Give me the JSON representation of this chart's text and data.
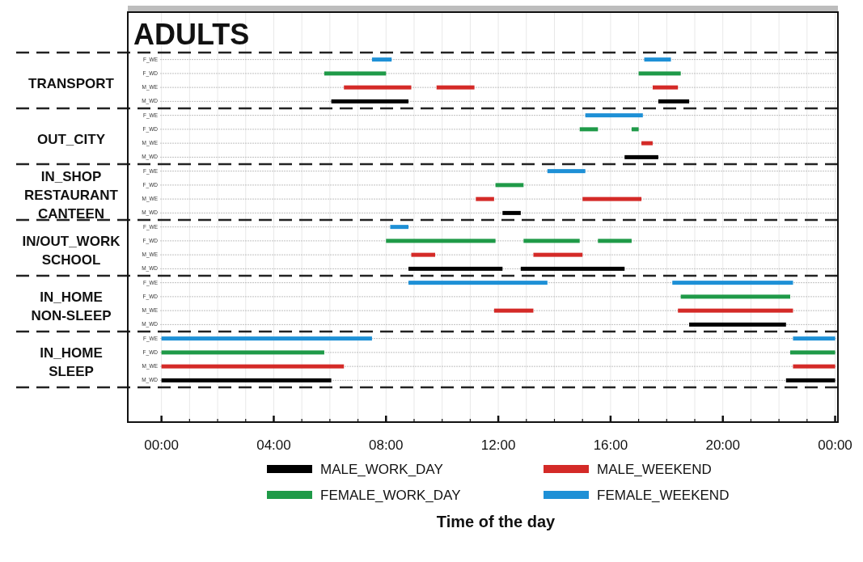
{
  "chart_data": {
    "type": "bar",
    "orientation": "horizontal",
    "title": "ADULTS",
    "xlabel": "Time of the day",
    "categories": [
      "F_WE",
      "F_WD",
      "M_WE",
      "M_WD",
      "F_WE",
      "F_WD",
      "M_WE",
      "M_WD",
      "F_WE",
      "F_WD",
      "M_WE",
      "M_WD",
      "F_WE",
      "F_WD",
      "M_WE",
      "M_WD",
      "F_WE",
      "F_WD",
      "M_WE",
      "M_WD",
      "F_WE",
      "F_WD",
      "M_WE",
      "M_WD"
    ],
    "annotations": [
      "TRANSPORT",
      "OUT_CITY",
      "IN_SHOP\nRESTAURANT\nCANTEEN",
      "IN/OUT_WORK\nSCHOOL",
      "IN_HOME\nNON-SLEEP",
      "IN_HOME\nSLEEP"
    ],
    "series": [
      {
        "name": "MALE_WORK_DAY",
        "color": "#000000",
        "values": [
          null,
          null,
          null,
          2.75,
          null,
          null,
          null,
          1.2,
          null,
          null,
          null,
          0.65,
          null,
          null,
          null,
          3.35,
          null,
          null,
          null,
          3.45,
          null,
          null,
          null,
          6.05
        ],
        "base": [
          null,
          null,
          null,
          6.05,
          null,
          null,
          null,
          16.5,
          null,
          null,
          null,
          12.15,
          null,
          null,
          null,
          8.8,
          null,
          null,
          null,
          18.8,
          null,
          null,
          null,
          0
        ]
      },
      {
        "name": "MALE_WEEKEND",
        "color": "#d42a27",
        "values": [
          null,
          null,
          2.4,
          null,
          null,
          null,
          0.4,
          null,
          null,
          null,
          0.65,
          null,
          null,
          null,
          0.85,
          null,
          null,
          null,
          1.4,
          null,
          null,
          null,
          6.5,
          null
        ],
        "base": [
          null,
          null,
          6.5,
          null,
          null,
          null,
          17.1,
          null,
          null,
          null,
          11.2,
          null,
          null,
          null,
          8.9,
          null,
          null,
          null,
          11.85,
          null,
          null,
          null,
          0,
          null
        ]
      },
      {
        "name": "FEMALE_WORK_DAY",
        "color": "#1f9a48",
        "values": [
          null,
          2.2,
          null,
          null,
          null,
          0.65,
          null,
          null,
          null,
          1.0,
          null,
          null,
          null,
          3.9,
          null,
          null,
          null,
          3.9,
          null,
          null,
          null,
          5.8,
          null,
          null
        ],
        "base": [
          null,
          5.8,
          null,
          null,
          null,
          14.9,
          null,
          null,
          null,
          11.9,
          null,
          null,
          null,
          8.0,
          null,
          null,
          null,
          18.5,
          null,
          null,
          null,
          0,
          null,
          null
        ]
      },
      {
        "name": "FEMALE_WEEKEND",
        "color": "#1e90d6",
        "values": [
          0.7,
          null,
          null,
          null,
          2.05,
          null,
          null,
          null,
          1.35,
          null,
          null,
          null,
          0.65,
          null,
          null,
          null,
          4.95,
          null,
          null,
          null,
          7.5,
          null,
          null,
          null
        ],
        "base": [
          7.5,
          null,
          null,
          null,
          15.1,
          null,
          null,
          null,
          13.75,
          null,
          null,
          null,
          8.15,
          null,
          null,
          null,
          8.8,
          null,
          null,
          null,
          0,
          null,
          null,
          null
        ]
      },
      {
        "color": "#000000",
        "values": [
          null,
          null,
          null,
          1.1,
          null,
          null,
          null,
          null,
          null,
          null,
          null,
          null,
          null,
          null,
          null,
          3.7,
          null,
          null,
          null,
          null,
          null,
          null,
          null,
          1.75
        ],
        "base": [
          null,
          null,
          null,
          17.7,
          null,
          null,
          null,
          null,
          null,
          null,
          null,
          null,
          null,
          null,
          null,
          12.8,
          null,
          null,
          null,
          null,
          null,
          null,
          null,
          22.25
        ]
      },
      {
        "color": "#d42a27",
        "values": [
          null,
          null,
          1.35,
          null,
          null,
          null,
          null,
          null,
          null,
          null,
          2.1,
          null,
          null,
          null,
          1.75,
          null,
          null,
          null,
          4.1,
          null,
          null,
          null,
          1.5,
          null
        ],
        "base": [
          null,
          null,
          9.8,
          null,
          null,
          null,
          null,
          null,
          null,
          null,
          15.0,
          null,
          null,
          null,
          13.25,
          null,
          null,
          null,
          18.4,
          null,
          null,
          null,
          22.5,
          null
        ]
      },
      {
        "color": "#d42a27",
        "values": [
          null,
          null,
          0.9,
          null,
          null,
          null,
          null,
          null,
          null,
          null,
          null,
          null,
          null,
          null,
          null,
          null,
          null,
          null,
          null,
          null,
          null,
          null,
          null,
          null
        ],
        "base": [
          null,
          null,
          17.5,
          null,
          null,
          null,
          null,
          null,
          null,
          null,
          null,
          null,
          null,
          null,
          null,
          null,
          null,
          null,
          null,
          null,
          null,
          null,
          null,
          null
        ]
      },
      {
        "color": "#1f9a48",
        "values": [
          null,
          1.5,
          null,
          null,
          null,
          0.25,
          null,
          null,
          null,
          null,
          null,
          null,
          null,
          2.0,
          null,
          null,
          null,
          null,
          null,
          null,
          null,
          1.6,
          null,
          null
        ],
        "base": [
          null,
          17.0,
          null,
          null,
          null,
          16.75,
          null,
          null,
          null,
          null,
          null,
          null,
          null,
          12.9,
          null,
          null,
          null,
          null,
          null,
          null,
          null,
          22.4,
          null,
          null
        ]
      },
      {
        "color": "#1f9a48",
        "values": [
          null,
          null,
          null,
          null,
          null,
          null,
          null,
          null,
          null,
          null,
          null,
          null,
          null,
          1.2,
          null,
          null,
          null,
          null,
          null,
          null,
          null,
          null,
          null,
          null
        ],
        "base": [
          null,
          null,
          null,
          null,
          null,
          null,
          null,
          null,
          null,
          null,
          null,
          null,
          null,
          15.55,
          null,
          null,
          null,
          null,
          null,
          null,
          null,
          null,
          null,
          null
        ]
      },
      {
        "color": "#1e90d6",
        "values": [
          0.95,
          null,
          null,
          null,
          null,
          null,
          null,
          null,
          null,
          null,
          null,
          null,
          null,
          null,
          null,
          null,
          4.3,
          null,
          null,
          null,
          1.5,
          null,
          null,
          null
        ],
        "base": [
          17.2,
          null,
          null,
          null,
          null,
          null,
          null,
          null,
          null,
          null,
          null,
          null,
          null,
          null,
          null,
          null,
          18.2,
          null,
          null,
          null,
          22.5,
          null,
          null,
          null
        ]
      }
    ],
    "xlim": [
      -1.2,
      24.1
    ],
    "xticks": [
      {
        "value": 0,
        "label": "00:00"
      },
      {
        "value": 1,
        "label": null
      },
      {
        "value": 2,
        "label": null
      },
      {
        "value": 3,
        "label": null
      },
      {
        "value": 4,
        "label": "04:00"
      },
      {
        "value": 5,
        "label": null
      },
      {
        "value": 6,
        "label": null
      },
      {
        "value": 7,
        "label": null
      },
      {
        "value": 8,
        "label": "08:00"
      },
      {
        "value": 9,
        "label": null
      },
      {
        "value": 10,
        "label": null
      },
      {
        "value": 11,
        "label": null
      },
      {
        "value": 12,
        "label": "12:00"
      },
      {
        "value": 13,
        "label": null
      },
      {
        "value": 14,
        "label": null
      },
      {
        "value": 15,
        "label": null
      },
      {
        "value": 16,
        "label": "16:00"
      },
      {
        "value": 17,
        "label": null
      },
      {
        "value": 18,
        "label": null
      },
      {
        "value": 19,
        "label": null
      },
      {
        "value": 20,
        "label": "20:00"
      },
      {
        "value": 21,
        "label": null
      },
      {
        "value": 22,
        "label": null
      },
      {
        "value": 23,
        "label": null
      },
      {
        "value": 24,
        "label": "00:00"
      }
    ],
    "grid": true,
    "legend": "bottom"
  }
}
